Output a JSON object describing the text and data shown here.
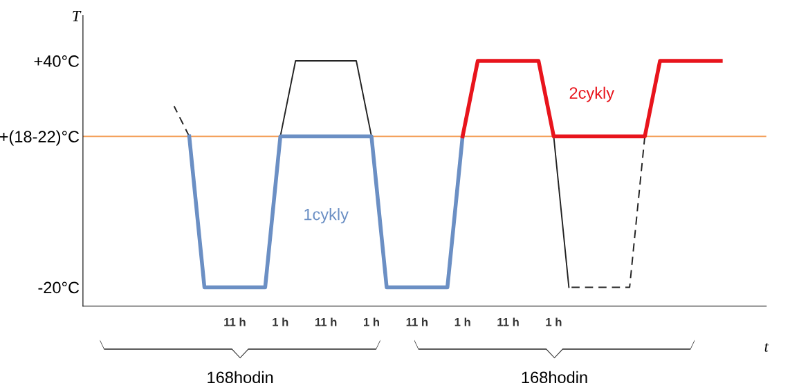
{
  "chart_data": {
    "type": "line",
    "xlabel": "t",
    "ylabel": "T",
    "ylim": [
      -25,
      52
    ],
    "categories": [
      null,
      null,
      null,
      null,
      "11 h",
      null,
      null,
      "1 h",
      null,
      null,
      "11 h",
      null,
      null,
      "1 h",
      null,
      null,
      "11 h",
      null,
      null,
      "1 h",
      null,
      null,
      "11 h",
      null,
      null,
      "1 h",
      null,
      null,
      null,
      null,
      null,
      null,
      null,
      null,
      null,
      null,
      null
    ],
    "yticks": [
      {
        "value": -20,
        "label": "-20°C"
      },
      {
        "value": 20,
        "label": "+(18-22)°C"
      },
      {
        "value": 40,
        "label": "+40°C"
      }
    ],
    "series": [
      {
        "color": "#222222",
        "line_style": "dashed",
        "values": [
          28,
          20,
          null,
          null,
          null,
          null,
          null,
          null,
          null,
          null,
          null,
          null,
          null,
          null,
          null,
          null,
          null,
          null,
          null,
          null,
          null,
          null,
          null,
          null,
          null,
          null,
          null,
          null,
          null,
          null,
          null,
          null,
          null,
          null,
          null,
          null,
          null
        ]
      },
      {
        "color": "#222222",
        "line_style": "solid",
        "values": [
          null,
          null,
          null,
          null,
          null,
          null,
          null,
          20,
          40,
          40,
          40,
          40,
          40,
          20,
          null,
          null,
          null,
          null,
          null,
          null,
          null,
          null,
          null,
          null,
          null,
          20,
          -20,
          null,
          null,
          null,
          null,
          null,
          null,
          null,
          null,
          null,
          null
        ]
      },
      {
        "color": "#222222",
        "line_style": "dashed",
        "values": [
          null,
          null,
          null,
          null,
          null,
          null,
          null,
          null,
          null,
          null,
          null,
          null,
          null,
          null,
          null,
          null,
          null,
          null,
          null,
          null,
          null,
          null,
          null,
          null,
          null,
          null,
          -20,
          -20,
          -20,
          -20,
          -20,
          20,
          null,
          null,
          null,
          null,
          null
        ]
      },
      {
        "name": "1cykly",
        "color": "#6b8fc4",
        "line_style": "solid",
        "values": [
          null,
          20,
          -20,
          -20,
          -20,
          -20,
          -20,
          20,
          20,
          20,
          20,
          20,
          20,
          20,
          -20,
          -20,
          -20,
          -20,
          -20,
          20,
          null,
          null,
          null,
          null,
          null,
          null,
          null,
          null,
          null,
          null,
          null,
          null,
          null,
          null,
          null,
          null,
          null
        ]
      },
      {
        "name": "2cykly",
        "color": "#e8141c",
        "line_style": "solid",
        "values": [
          null,
          null,
          null,
          null,
          null,
          null,
          null,
          null,
          null,
          null,
          null,
          null,
          null,
          null,
          null,
          null,
          null,
          null,
          null,
          20,
          40,
          40,
          40,
          40,
          40,
          20,
          20,
          20,
          20,
          20,
          20,
          20,
          40,
          40,
          40,
          40,
          40
        ]
      }
    ],
    "ref_lines": [
      {
        "axis": "y",
        "value": 20,
        "color": "#f4a05a"
      }
    ],
    "annotations": [
      "168hodin",
      "168hodin"
    ],
    "grid": false,
    "legend": false,
    "marker": "none"
  }
}
